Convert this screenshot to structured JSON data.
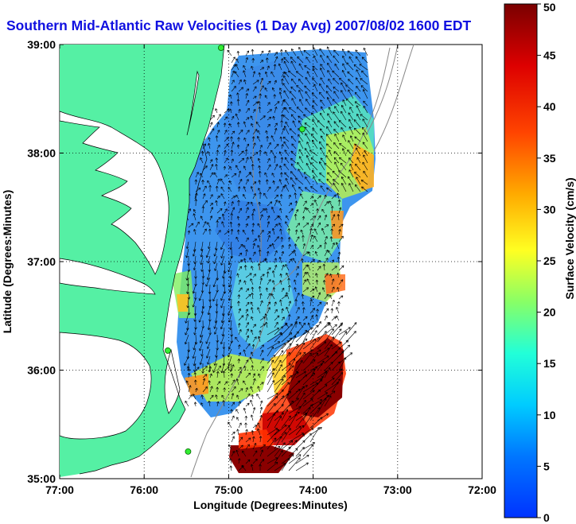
{
  "title": "Southern Mid-Atlantic Raw Velocities (1 Day Avg) 2007/08/02 1600 EDT",
  "x_axis": {
    "label": "Longitude (Degrees:Minutes)",
    "ticks": [
      {
        "value": -77,
        "label": "77:00"
      },
      {
        "value": -76,
        "label": "76:00"
      },
      {
        "value": -75,
        "label": "75:00"
      },
      {
        "value": -74,
        "label": "74:00"
      },
      {
        "value": -73,
        "label": "73:00"
      },
      {
        "value": -72,
        "label": "72:00"
      }
    ],
    "range": [
      -77,
      -72
    ]
  },
  "y_axis": {
    "label": "Latitude (Degrees:Minutes)",
    "ticks": [
      {
        "value": 35,
        "label": "35:00"
      },
      {
        "value": 36,
        "label": "36:00"
      },
      {
        "value": 37,
        "label": "37:00"
      },
      {
        "value": 38,
        "label": "38:00"
      },
      {
        "value": 39,
        "label": "39:00"
      }
    ],
    "range": [
      35,
      39
    ]
  },
  "colorbar": {
    "label": "Surface Velocity (cm/s)",
    "min": 0,
    "max": 50,
    "ticks": [
      0,
      5,
      10,
      15,
      20,
      25,
      30,
      35,
      40,
      45,
      50
    ],
    "colormap": "jet"
  },
  "grid": "dotted",
  "land_color": "#55f0a4",
  "stations": [
    {
      "lon": -75.09,
      "lat": 38.97
    },
    {
      "lon": -74.13,
      "lat": 38.22
    },
    {
      "lon": -75.72,
      "lat": 36.18
    },
    {
      "lon": -75.48,
      "lat": 35.25
    }
  ],
  "chart_data": {
    "type": "heatmap",
    "title": "Southern Mid-Atlantic Raw Velocities (1 Day Avg) 2007/08/02 1600 EDT",
    "xlabel": "Longitude (Degrees:Minutes)",
    "ylabel": "Latitude (Degrees:Minutes)",
    "xlim": [
      -77,
      -72
    ],
    "ylim": [
      35,
      39
    ],
    "value_label": "Surface Velocity (cm/s)",
    "value_range": [
      0,
      50
    ],
    "speed_regions": [
      {
        "lon": -74.5,
        "lat": 38.3,
        "speed": 8
      },
      {
        "lon": -74.8,
        "lat": 37.3,
        "speed": 7
      },
      {
        "lon": -75.3,
        "lat": 36.7,
        "speed": 10
      },
      {
        "lon": -73.7,
        "lat": 37.6,
        "speed": 20
      },
      {
        "lon": -73.4,
        "lat": 38.0,
        "speed": 26
      },
      {
        "lon": -73.6,
        "lat": 36.6,
        "speed": 22
      },
      {
        "lon": -74.6,
        "lat": 35.9,
        "speed": 22
      },
      {
        "lon": -74.1,
        "lat": 35.8,
        "speed": 45
      },
      {
        "lon": -74.3,
        "lat": 35.4,
        "speed": 42
      },
      {
        "lon": -74.8,
        "lat": 35.2,
        "speed": 46
      }
    ]
  }
}
